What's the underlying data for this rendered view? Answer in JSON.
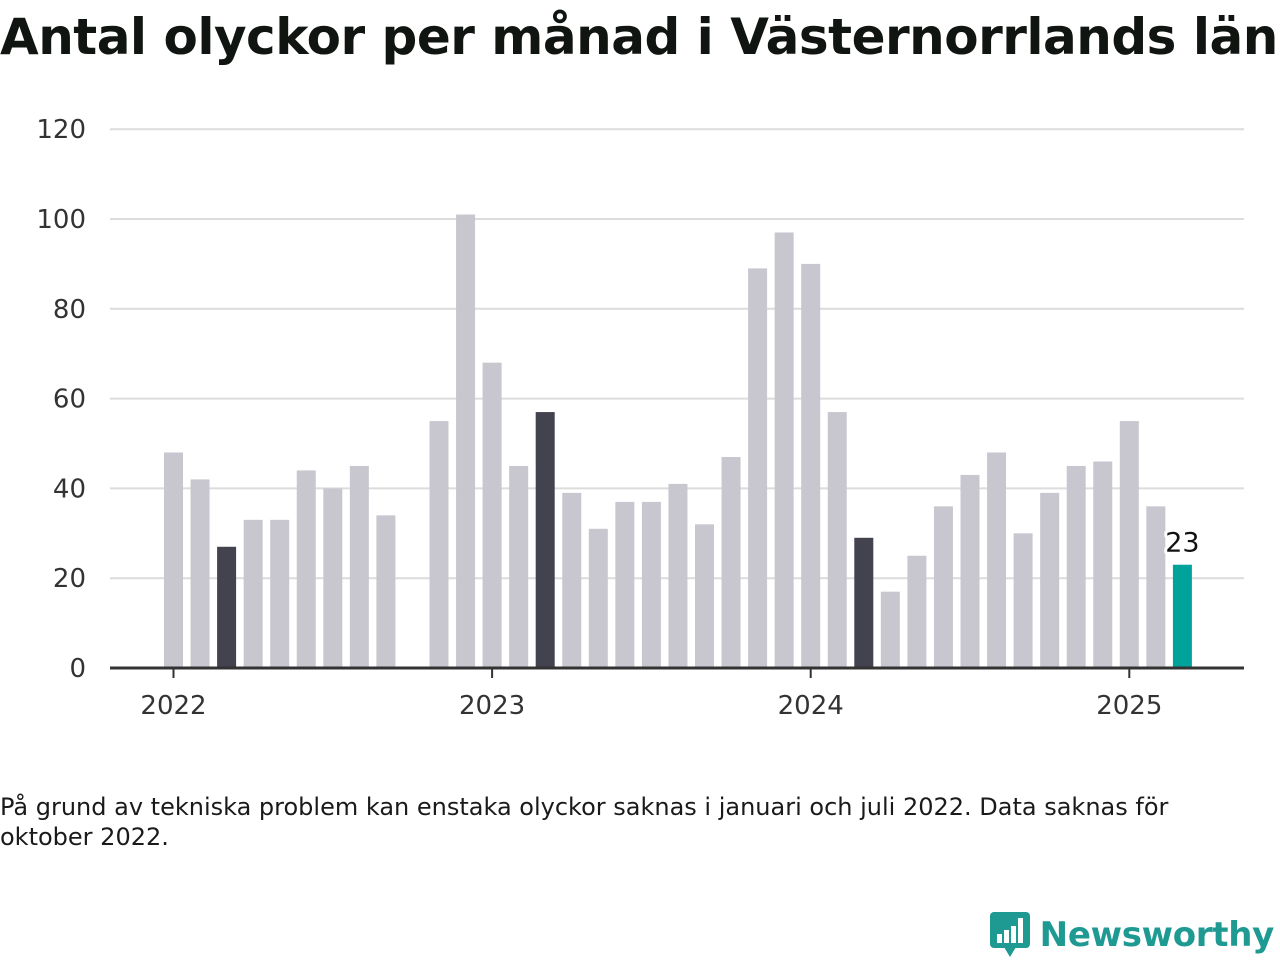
{
  "title": "Antal olyckor per månad i Västernorrlands län",
  "footnote": "På grund av tekniska problem kan enstaka olyckor saknas i januari och juli 2022. Data saknas för oktober 2022.",
  "brand": {
    "name": "Newsworthy",
    "logo_icon": "bar-chart-speech-bubble-icon",
    "color": "#1f9a93"
  },
  "colors": {
    "default_bar": "#c8c7cf",
    "highlight_month": "#43424f",
    "latest": "#00a39b",
    "grid": "#dcdcdc",
    "axis": "#333333"
  },
  "chart_data": {
    "type": "bar",
    "title": "Antal olyckor per månad i Västernorrlands län",
    "xlabel": "",
    "ylabel": "",
    "ylim": [
      0,
      120
    ],
    "yticks": [
      0,
      20,
      40,
      60,
      80,
      100,
      120
    ],
    "xticks": [
      "2022",
      "2023",
      "2024",
      "2025"
    ],
    "grid": true,
    "legend": "none",
    "months": [
      "2022-01",
      "2022-02",
      "2022-03",
      "2022-04",
      "2022-05",
      "2022-06",
      "2022-07",
      "2022-08",
      "2022-09",
      "2022-10",
      "2022-11",
      "2022-12",
      "2023-01",
      "2023-02",
      "2023-03",
      "2023-04",
      "2023-05",
      "2023-06",
      "2023-07",
      "2023-08",
      "2023-09",
      "2023-10",
      "2023-11",
      "2023-12",
      "2024-01",
      "2024-02",
      "2024-03",
      "2024-04",
      "2024-05",
      "2024-06",
      "2024-07",
      "2024-08",
      "2024-09",
      "2024-10",
      "2024-11",
      "2024-12",
      "2025-01",
      "2025-02",
      "2025-03"
    ],
    "values": [
      48,
      42,
      27,
      33,
      33,
      44,
      40,
      45,
      34,
      null,
      55,
      101,
      68,
      45,
      57,
      39,
      31,
      37,
      37,
      41,
      32,
      47,
      89,
      97,
      90,
      57,
      29,
      17,
      25,
      36,
      43,
      48,
      30,
      39,
      45,
      46,
      55,
      36,
      23
    ],
    "highlighted": [
      "2022-03",
      "2023-03",
      "2024-03"
    ],
    "latest": "2025-03",
    "annotations": [
      {
        "month": "2025-03",
        "label": "23"
      }
    ]
  }
}
